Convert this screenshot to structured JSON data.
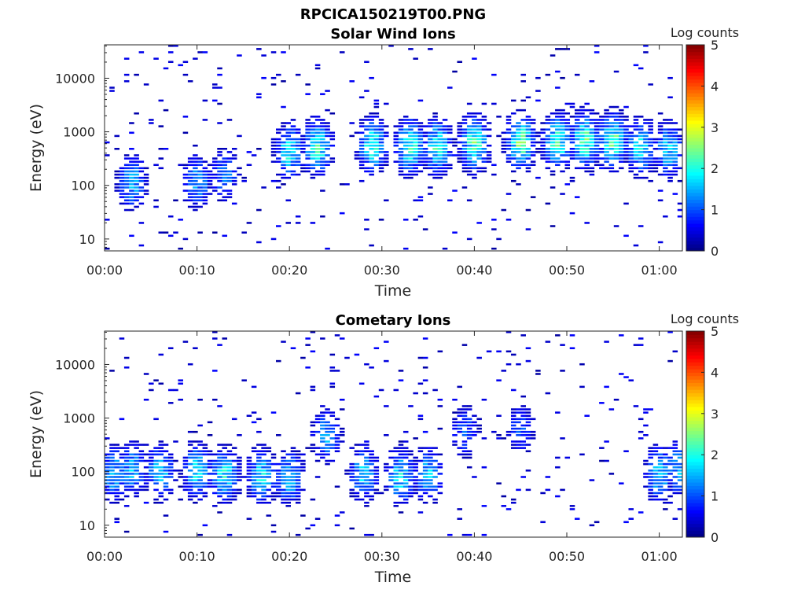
{
  "figure_title": "RPCICA150219T00.PNG",
  "colorbar": {
    "label": "Log counts",
    "range": [
      0,
      5
    ],
    "ticks": [
      "0",
      "1",
      "2",
      "3",
      "4",
      "5"
    ],
    "colormap": "jet"
  },
  "chart_data": [
    {
      "type": "heatmap",
      "title": "Solar Wind Ions",
      "xlabel": "Time",
      "ylabel": "Energy (eV)",
      "yscale": "log",
      "ylim": [
        6,
        42000
      ],
      "xlim_minutes": [
        0,
        62.5
      ],
      "x_ticks": [
        "00:00",
        "00:10",
        "00:20",
        "00:30",
        "00:40",
        "00:50",
        "01:00"
      ],
      "y_ticks": [
        "10",
        "100",
        "1000",
        "10000"
      ],
      "clim": [
        0,
        5
      ],
      "peak_log_counts": [
        {
          "time": "00:03",
          "energy_eV": 110,
          "log_counts": 1.7
        },
        {
          "time": "00:10",
          "energy_eV": 115,
          "log_counts": 1.6
        },
        {
          "time": "00:13",
          "energy_eV": 150,
          "log_counts": 1.4
        },
        {
          "time": "00:20",
          "energy_eV": 420,
          "log_counts": 2.1
        },
        {
          "time": "00:23",
          "energy_eV": 500,
          "log_counts": 2.4
        },
        {
          "time": "00:29",
          "energy_eV": 550,
          "log_counts": 2.3
        },
        {
          "time": "00:33",
          "energy_eV": 530,
          "log_counts": 2.4
        },
        {
          "time": "00:36",
          "energy_eV": 520,
          "log_counts": 2.3
        },
        {
          "time": "00:40",
          "energy_eV": 600,
          "log_counts": 2.5
        },
        {
          "time": "00:45",
          "energy_eV": 620,
          "log_counts": 2.6
        },
        {
          "time": "00:49",
          "energy_eV": 650,
          "log_counts": 2.4
        },
        {
          "time": "00:52",
          "energy_eV": 700,
          "log_counts": 2.6
        },
        {
          "time": "00:55",
          "energy_eV": 680,
          "log_counts": 2.5
        },
        {
          "time": "00:58",
          "energy_eV": 500,
          "log_counts": 2.1
        },
        {
          "time": "01:01",
          "energy_eV": 450,
          "log_counts": 1.9
        }
      ]
    },
    {
      "type": "heatmap",
      "title": "Cometary Ions",
      "xlabel": "Time",
      "ylabel": "Energy (eV)",
      "yscale": "log",
      "ylim": [
        6,
        42000
      ],
      "xlim_minutes": [
        0,
        62.5
      ],
      "x_ticks": [
        "00:00",
        "00:10",
        "00:20",
        "00:30",
        "00:40",
        "00:50",
        "01:00"
      ],
      "y_ticks": [
        "10",
        "100",
        "1000",
        "10000"
      ],
      "clim": [
        0,
        5
      ],
      "peak_log_counts": [
        {
          "time": "00:01",
          "energy_eV": 90,
          "log_counts": 1.8
        },
        {
          "time": "00:03",
          "energy_eV": 110,
          "log_counts": 1.7
        },
        {
          "time": "00:06",
          "energy_eV": 95,
          "log_counts": 1.9
        },
        {
          "time": "00:10",
          "energy_eV": 100,
          "log_counts": 2.0
        },
        {
          "time": "00:13",
          "energy_eV": 85,
          "log_counts": 2.1
        },
        {
          "time": "00:17",
          "energy_eV": 80,
          "log_counts": 2.0
        },
        {
          "time": "00:20",
          "energy_eV": 75,
          "log_counts": 1.8
        },
        {
          "time": "00:24",
          "energy_eV": 450,
          "log_counts": 1.6
        },
        {
          "time": "00:28",
          "energy_eV": 90,
          "log_counts": 1.9
        },
        {
          "time": "00:32",
          "energy_eV": 80,
          "log_counts": 2.1
        },
        {
          "time": "00:35",
          "energy_eV": 85,
          "log_counts": 1.8
        },
        {
          "time": "00:39",
          "energy_eV": 550,
          "log_counts": 1.2
        },
        {
          "time": "00:45",
          "energy_eV": 600,
          "log_counts": 1.1
        },
        {
          "time": "01:00",
          "energy_eV": 90,
          "log_counts": 1.9
        },
        {
          "time": "01:02",
          "energy_eV": 110,
          "log_counts": 1.7
        }
      ]
    }
  ]
}
